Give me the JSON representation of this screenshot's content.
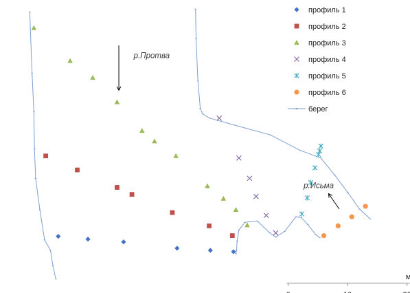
{
  "chart_data": {
    "type": "scatter",
    "title": "",
    "xlabel": "",
    "ylabel": "",
    "x_unit": "м",
    "x_ticks": [
      0,
      10,
      20
    ],
    "xlim": [
      -48.5,
      20.5
    ],
    "ylim": [
      -1.4,
      40.5
    ],
    "grid": false,
    "legend_position": "right",
    "annotations": [
      {
        "text": "р.Протва",
        "x": -26,
        "y": 32.2,
        "arrow": {
          "from": [
            -28.5,
            34
          ],
          "to": [
            -28.5,
            27.6
          ]
        }
      },
      {
        "text": "р.Исьма",
        "x": 2.6,
        "y": 13.6,
        "arrow": {
          "from": [
            8.6,
            10.6
          ],
          "to": [
            6.8,
            12.8
          ]
        }
      }
    ],
    "series": [
      {
        "name": "профиль 1",
        "marker": "diamond",
        "color": "#4472c4",
        "points": [
          [
            -38.7,
            6.7
          ],
          [
            -33.7,
            6.3
          ],
          [
            -27.7,
            5.9
          ],
          [
            -18.7,
            5.0
          ],
          [
            -13.1,
            4.7
          ],
          [
            -9.2,
            4.5
          ]
        ]
      },
      {
        "name": "профиль 2",
        "marker": "square",
        "color": "#c0504d",
        "points": [
          [
            -40.8,
            18.2
          ],
          [
            -35.5,
            16.2
          ],
          [
            -28.8,
            13.7
          ],
          [
            -26.3,
            12.7
          ],
          [
            -19.5,
            10.1
          ],
          [
            -13.3,
            8.2
          ],
          [
            -9.4,
            6.8
          ]
        ]
      },
      {
        "name": "профиль 3",
        "marker": "triangle",
        "color": "#9bbb59",
        "points": [
          [
            -42.8,
            36.5
          ],
          [
            -36.7,
            31.8
          ],
          [
            -32.9,
            29.4
          ],
          [
            -28.8,
            25.9
          ],
          [
            -24.6,
            21.8
          ],
          [
            -22.5,
            20.3
          ],
          [
            -18.9,
            18.2
          ],
          [
            -13.6,
            13.9
          ],
          [
            -10.9,
            12.1
          ],
          [
            -8.8,
            10.5
          ],
          [
            -6.9,
            8.3
          ]
        ]
      },
      {
        "name": "профиль 4",
        "marker": "x",
        "color": "#8064a2",
        "points": [
          [
            -11.6,
            23.6
          ],
          [
            -8.3,
            17.9
          ],
          [
            -6.5,
            15.0
          ],
          [
            -5.4,
            12.4
          ],
          [
            -3.7,
            9.7
          ],
          [
            -2.1,
            7.2
          ]
        ]
      },
      {
        "name": "профиль 5",
        "marker": "asterisk",
        "color": "#4bacc6",
        "points": [
          [
            2.3,
            9.9
          ],
          [
            3.2,
            12.2
          ],
          [
            3.8,
            14.4
          ],
          [
            4.5,
            16.5
          ],
          [
            5.1,
            18.4
          ],
          [
            5.3,
            18.9
          ],
          [
            5.5,
            19.6
          ]
        ]
      },
      {
        "name": "профиль 6",
        "marker": "circle",
        "color": "#f79646",
        "points": [
          [
            6.0,
            6.8
          ],
          [
            8.4,
            8.2
          ],
          [
            10.7,
            9.5
          ],
          [
            13.0,
            11.0
          ]
        ]
      },
      {
        "name": "берег",
        "marker": "line",
        "color": "#7f9fd0",
        "lines": [
          [
            [
              -43.5,
              38.8
            ],
            [
              -43.1,
              30.0
            ],
            [
              -42.8,
              24.5
            ],
            [
              -42.7,
              19.2
            ],
            [
              -42.5,
              15.0
            ],
            [
              -41.8,
              10.5
            ],
            [
              -41.0,
              6.2
            ],
            [
              -40.0,
              4.7
            ],
            [
              -39.6,
              2.5
            ],
            [
              -39.1,
              0.6
            ]
          ],
          [
            [
              -15.6,
              39.2
            ],
            [
              -15.5,
              35.0
            ],
            [
              -15.2,
              29.0
            ],
            [
              -14.8,
              25.0
            ],
            [
              -14.4,
              24.2
            ],
            [
              -13.2,
              23.6
            ],
            [
              -9.0,
              22.6
            ],
            [
              -3.0,
              21.2
            ],
            [
              2.0,
              19.0
            ],
            [
              5.5,
              17.9
            ],
            [
              7.8,
              15.5
            ],
            [
              10.0,
              13.0
            ],
            [
              12.0,
              10.6
            ],
            [
              13.8,
              9.2
            ]
          ],
          [
            [
              -8.8,
              4.2
            ],
            [
              -8.7,
              4.7
            ],
            [
              -8.6,
              6.0
            ],
            [
              -8.3,
              7.6
            ],
            [
              -7.3,
              8.7
            ],
            [
              -5.2,
              8.9
            ],
            [
              -3.1,
              7.2
            ],
            [
              -2.1,
              6.6
            ],
            [
              -0.6,
              7.4
            ],
            [
              1.3,
              9.5
            ],
            [
              2.2,
              9.4
            ],
            [
              3.3,
              8.4
            ],
            [
              4.6,
              7.0
            ],
            [
              5.3,
              6.5
            ]
          ]
        ]
      }
    ]
  }
}
